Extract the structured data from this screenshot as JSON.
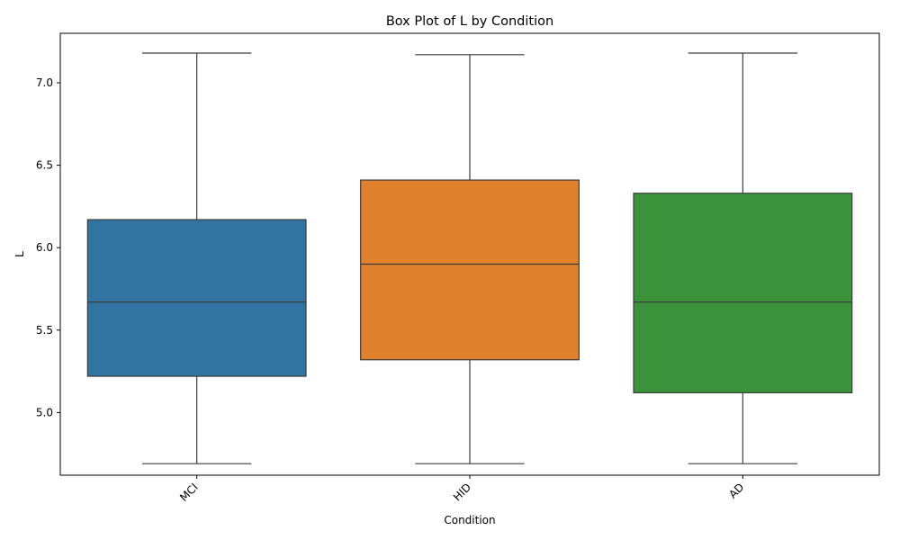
{
  "chart_data": {
    "type": "box",
    "title": "Box Plot of L by Condition",
    "xlabel": "Condition",
    "ylabel": "L",
    "ylim": [
      4.62,
      7.3
    ],
    "yticks": [
      "5.0",
      "5.5",
      "6.0",
      "6.5",
      "7.0"
    ],
    "grid": false,
    "categories": [
      "MCI",
      "HID",
      "AD"
    ],
    "boxes": [
      {
        "category": "MCI",
        "color": "#3274a1",
        "min": 4.69,
        "q1": 5.22,
        "median": 5.67,
        "q3": 6.17,
        "max": 7.18
      },
      {
        "category": "HID",
        "color": "#e1812c",
        "min": 4.69,
        "q1": 5.32,
        "median": 5.9,
        "q3": 6.41,
        "max": 7.17
      },
      {
        "category": "AD",
        "color": "#3a923a",
        "min": 4.69,
        "q1": 5.12,
        "median": 5.67,
        "q3": 6.33,
        "max": 7.18
      }
    ]
  }
}
